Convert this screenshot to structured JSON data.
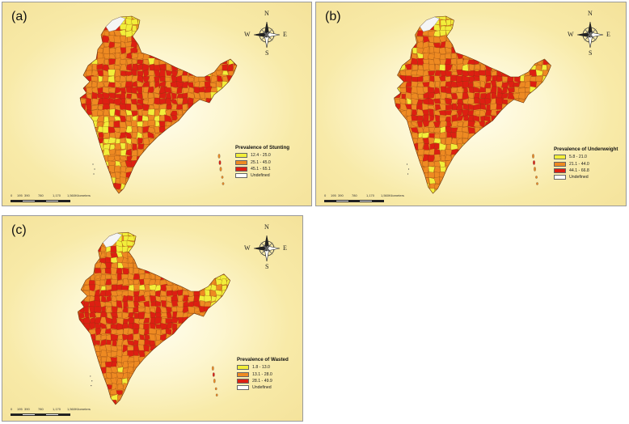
{
  "colors": {
    "low": "#f2ee3a",
    "mid": "#ee8a22",
    "high": "#dd1f12",
    "undefined": "#ffffff",
    "border": "#7a3a10"
  },
  "compass": {
    "north": "N",
    "south": "S",
    "east": "E",
    "west": "W"
  },
  "scale": {
    "ticks": [
      "0",
      "195",
      "390",
      "780",
      "1,170",
      "1,560"
    ],
    "unit": "Kilometers"
  },
  "panels": [
    {
      "label": "(a)",
      "legend_title": "Prevalence of Stunting",
      "classes": [
        {
          "label": "12.4 - 25.0",
          "color": "#f2ee3a"
        },
        {
          "label": "25.1 - 45.0",
          "color": "#ee8a22"
        },
        {
          "label": "45.1 - 65.1",
          "color": "#dd1f12"
        },
        {
          "label": "Undefined",
          "color": "#ffffff"
        }
      ]
    },
    {
      "label": "(b)",
      "legend_title": "Prevalence of Underweight",
      "classes": [
        {
          "label": "5.8 - 21.0",
          "color": "#f2ee3a"
        },
        {
          "label": "21.1 - 44.0",
          "color": "#ee8a22"
        },
        {
          "label": "44.1 - 66.8",
          "color": "#dd1f12"
        },
        {
          "label": "Undefined",
          "color": "#ffffff"
        }
      ]
    },
    {
      "label": "(c)",
      "legend_title": "Prevalence of Wasted",
      "classes": [
        {
          "label": "1.8 - 13.0",
          "color": "#f2ee3a"
        },
        {
          "label": "13.1 - 28.0",
          "color": "#ee8a22"
        },
        {
          "label": "28.1 - 49.9",
          "color": "#dd1f12"
        },
        {
          "label": "Undefined",
          "color": "#ffffff"
        }
      ]
    }
  ]
}
